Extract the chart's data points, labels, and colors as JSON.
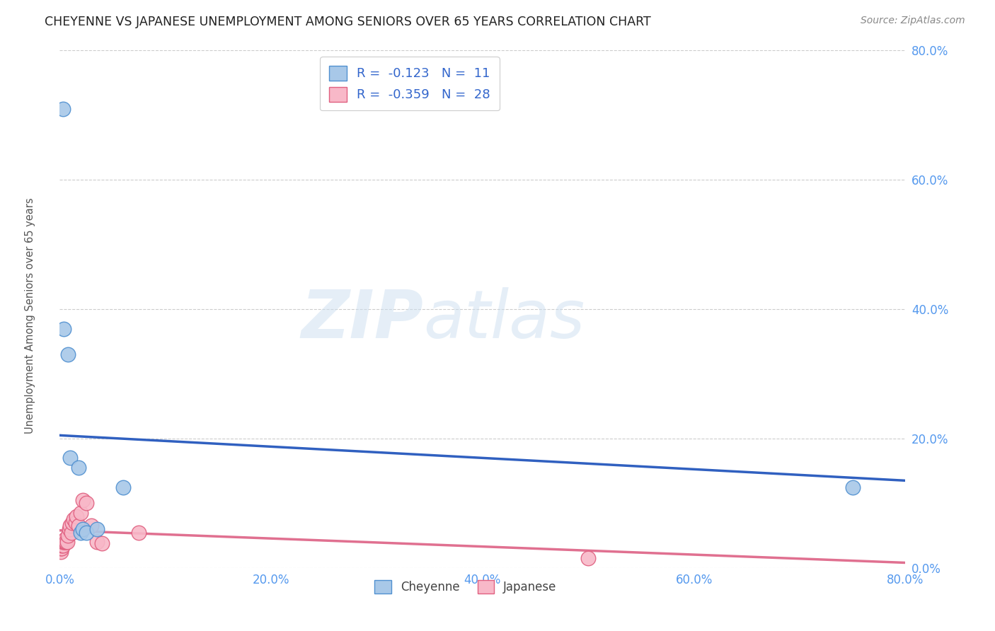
{
  "title": "CHEYENNE VS JAPANESE UNEMPLOYMENT AMONG SENIORS OVER 65 YEARS CORRELATION CHART",
  "source": "Source: ZipAtlas.com",
  "ylabel": "Unemployment Among Seniors over 65 years",
  "xlim": [
    0.0,
    0.8
  ],
  "ylim": [
    0.0,
    0.8
  ],
  "xticks": [
    0.0,
    0.2,
    0.4,
    0.6,
    0.8
  ],
  "yticks": [
    0.0,
    0.2,
    0.4,
    0.6,
    0.8
  ],
  "xticklabels": [
    "0.0%",
    "20.0%",
    "40.0%",
    "60.0%",
    "80.0%"
  ],
  "yticklabels": [
    "0.0%",
    "20.0%",
    "40.0%",
    "60.0%",
    "80.0%"
  ],
  "cheyenne_fill_color": "#a8c8e8",
  "cheyenne_edge_color": "#5090d0",
  "japanese_fill_color": "#f8b8c8",
  "japanese_edge_color": "#e06080",
  "cheyenne_line_color": "#3060c0",
  "japanese_line_color": "#e07090",
  "legend_R_cheyenne": "-0.123",
  "legend_N_cheyenne": "11",
  "legend_R_japanese": "-0.359",
  "legend_N_japanese": "28",
  "cheyenne_x": [
    0.003,
    0.004,
    0.008,
    0.01,
    0.018,
    0.02,
    0.022,
    0.025,
    0.035,
    0.06,
    0.75
  ],
  "cheyenne_y": [
    0.71,
    0.37,
    0.33,
    0.17,
    0.155,
    0.055,
    0.06,
    0.055,
    0.06,
    0.125,
    0.125
  ],
  "japanese_x": [
    0.001,
    0.001,
    0.002,
    0.002,
    0.003,
    0.003,
    0.004,
    0.005,
    0.005,
    0.006,
    0.007,
    0.008,
    0.009,
    0.01,
    0.011,
    0.012,
    0.013,
    0.015,
    0.016,
    0.018,
    0.02,
    0.022,
    0.025,
    0.03,
    0.035,
    0.04,
    0.075,
    0.5
  ],
  "japanese_y": [
    0.025,
    0.03,
    0.03,
    0.035,
    0.035,
    0.04,
    0.04,
    0.04,
    0.045,
    0.04,
    0.04,
    0.05,
    0.06,
    0.065,
    0.055,
    0.07,
    0.075,
    0.07,
    0.08,
    0.065,
    0.085,
    0.105,
    0.1,
    0.065,
    0.04,
    0.038,
    0.055,
    0.015
  ],
  "cheyenne_trend_x": [
    0.0,
    0.8
  ],
  "cheyenne_trend_y": [
    0.205,
    0.135
  ],
  "japanese_trend_x": [
    0.0,
    0.8
  ],
  "japanese_trend_y": [
    0.058,
    0.008
  ],
  "watermark_line1": "ZIP",
  "watermark_line2": "atlas",
  "background_color": "#ffffff",
  "title_fontsize": 12.5,
  "tick_color": "#5599ee",
  "grid_color": "#cccccc",
  "legend_label_color": "#3366cc"
}
